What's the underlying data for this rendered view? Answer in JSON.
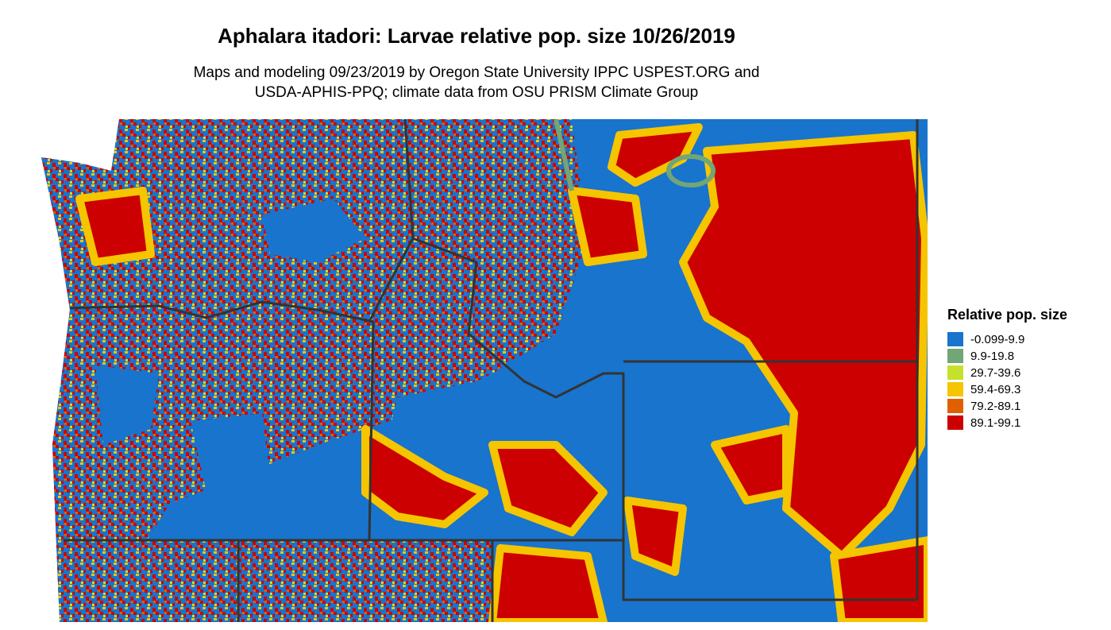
{
  "title": "Aphalara itadori: Larvae relative pop. size 10/26/2019",
  "subtitle": [
    "Maps and modeling 09/23/2019 by Oregon State University IPPC USPEST.ORG and",
    "USDA-APHIS-PPQ; climate data from OSU PRISM Climate Group"
  ],
  "legend": {
    "title": "Relative pop. size",
    "items": [
      {
        "label": "-0.099-9.9",
        "color": "#1874cd"
      },
      {
        "label": "9.9-19.8",
        "color": "#71a676"
      },
      {
        "label": "29.7-39.6",
        "color": "#c6e12b"
      },
      {
        "label": "59.4-69.3",
        "color": "#f5c500"
      },
      {
        "label": "79.2-89.1",
        "color": "#e06000"
      },
      {
        "label": "89.1-99.1",
        "color": "#cc0000"
      }
    ]
  }
}
